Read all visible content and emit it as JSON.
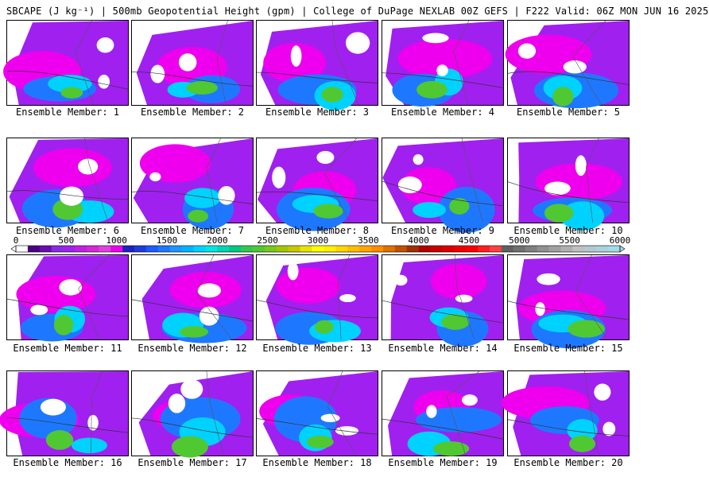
{
  "header": {
    "title": "SBCAPE (J kg⁻¹) | 500mb Geopotential Height (gpm) | College of DuPage NEXLAB 00Z GEFS | F222 Valid: 06Z MON JUN 16 2025"
  },
  "panels": [
    {
      "label": "Ensemble Member: 1"
    },
    {
      "label": "Ensemble Member: 2"
    },
    {
      "label": "Ensemble Member: 3"
    },
    {
      "label": "Ensemble Member: 4"
    },
    {
      "label": "Ensemble Member: 5"
    },
    {
      "label": "Ensemble Member: 6"
    },
    {
      "label": "Ensemble Member: 7"
    },
    {
      "label": "Ensemble Member: 8"
    },
    {
      "label": "Ensemble Member: 9"
    },
    {
      "label": "Ensemble Member: 10"
    },
    {
      "label": "Ensemble Member: 11"
    },
    {
      "label": "Ensemble Member: 12"
    },
    {
      "label": "Ensemble Member: 13"
    },
    {
      "label": "Ensemble Member: 14"
    },
    {
      "label": "Ensemble Member: 15"
    },
    {
      "label": "Ensemble Member: 16"
    },
    {
      "label": "Ensemble Member: 17"
    },
    {
      "label": "Ensemble Member: 18"
    },
    {
      "label": "Ensemble Member: 19"
    },
    {
      "label": "Ensemble Member: 20"
    }
  ],
  "colorbar": {
    "tick_labels": [
      "0",
      "500",
      "1000",
      "1500",
      "2000",
      "2500",
      "3000",
      "3500",
      "4000",
      "4500",
      "5000",
      "5500",
      "6000"
    ],
    "colors": [
      "#ffffff",
      "#4b0082",
      "#6a0dad",
      "#8a2be2",
      "#a020f0",
      "#c020e0",
      "#d42ad4",
      "#e040e0",
      "#ee00ee",
      "#2020c0",
      "#1e3cdc",
      "#1e5aff",
      "#1e78ff",
      "#1e96ff",
      "#00b4ff",
      "#00d2ff",
      "#00e6e6",
      "#00d7b4",
      "#00c882",
      "#32c850",
      "#50c832",
      "#78c81e",
      "#a0c800",
      "#c8c800",
      "#e6e600",
      "#ffff00",
      "#fff000",
      "#ffd700",
      "#ffbe00",
      "#ffa500",
      "#ff8c00",
      "#e07000",
      "#c05000",
      "#a03000",
      "#b00000",
      "#c80000",
      "#dc0000",
      "#f00000",
      "#ff0000",
      "#ff1e1e",
      "#ff4040",
      "#606060",
      "#707070",
      "#808080",
      "#909090",
      "#a0a0a0",
      "#b0b0b0",
      "#c0c0c0",
      "#b4c8d2",
      "#aad2dc",
      "#a0dce6"
    ]
  }
}
